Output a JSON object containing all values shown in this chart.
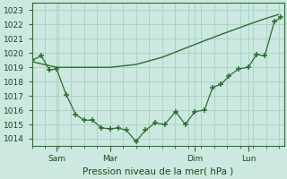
{
  "background_color": "#cce8e0",
  "grid_color": "#a8d4c8",
  "line_color": "#2d6e2d",
  "xlabel": "Pression niveau de la mer( hPa )",
  "ylim": [
    1013.5,
    1023.5
  ],
  "xlim": [
    0,
    9.2
  ],
  "yticks": [
    1014,
    1015,
    1016,
    1017,
    1018,
    1019,
    1020,
    1021,
    1022,
    1023
  ],
  "xtick_labels": [
    "Sam",
    "Mar",
    "Dim",
    "Lun"
  ],
  "xtick_positions": [
    0.9,
    2.85,
    5.95,
    7.9
  ],
  "smooth_line_x": [
    0,
    0.9,
    1.9,
    2.85,
    3.8,
    4.75,
    5.95,
    6.9,
    7.9,
    8.5,
    9.0
  ],
  "smooth_line_y": [
    1019.4,
    1019.0,
    1019.0,
    1019.0,
    1019.2,
    1019.7,
    1020.6,
    1021.3,
    1022.0,
    1022.4,
    1022.7
  ],
  "actual_line_x": [
    0.0,
    0.35,
    0.65,
    0.9,
    1.25,
    1.6,
    1.9,
    2.2,
    2.55,
    2.85,
    3.15,
    3.45,
    3.8,
    4.15,
    4.5,
    4.85,
    5.25,
    5.6,
    5.95,
    6.3,
    6.6,
    6.9,
    7.2,
    7.55,
    7.9,
    8.2,
    8.5,
    8.85,
    9.1
  ],
  "actual_line_y": [
    1019.5,
    1019.8,
    1018.8,
    1018.9,
    1017.1,
    1015.7,
    1015.3,
    1015.3,
    1014.75,
    1014.7,
    1014.75,
    1014.6,
    1013.8,
    1014.6,
    1015.1,
    1015.0,
    1015.9,
    1015.0,
    1015.9,
    1016.0,
    1017.6,
    1017.8,
    1018.4,
    1018.9,
    1019.0,
    1019.9,
    1019.8,
    1022.2,
    1022.5
  ]
}
